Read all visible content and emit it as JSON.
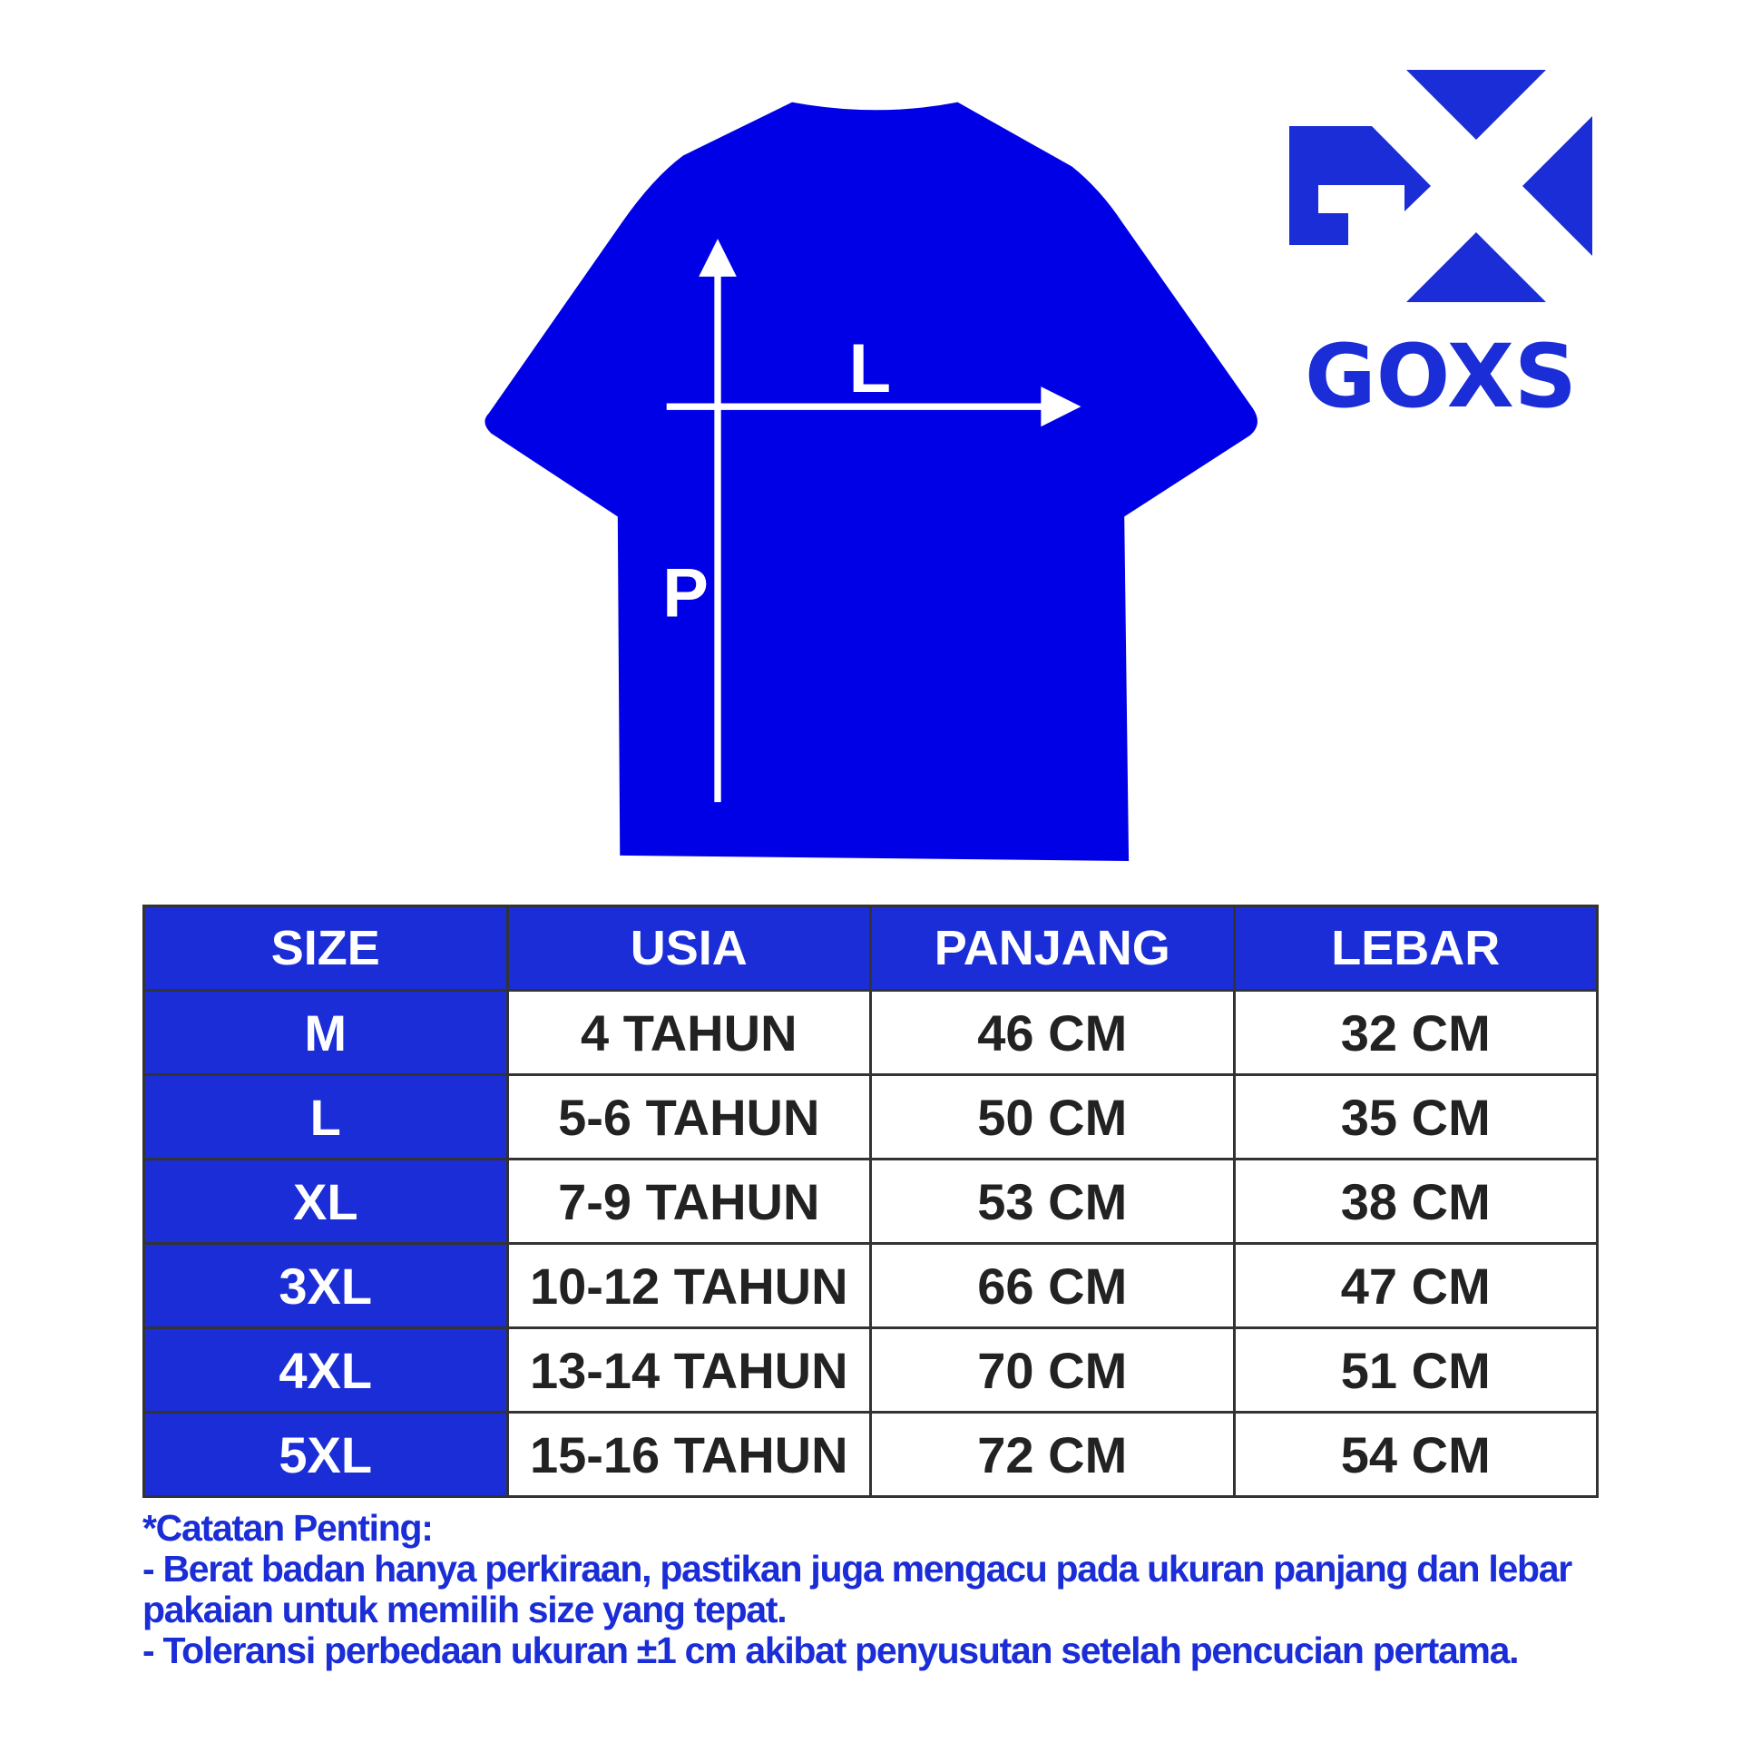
{
  "brand": {
    "logo_text": "GOXS",
    "color": "#1a2dd6"
  },
  "diagram": {
    "shirt_color": "#0000e6",
    "length_label": "P",
    "width_label": "L"
  },
  "table": {
    "headers": [
      "SIZE",
      "USIA",
      "PANJANG",
      "LEBAR"
    ],
    "rows": [
      [
        "M",
        "4 TAHUN",
        "46 CM",
        "32 CM"
      ],
      [
        "L",
        "5-6 TAHUN",
        "50 CM",
        "35 CM"
      ],
      [
        "XL",
        "7-9 TAHUN",
        "53 CM",
        "38 CM"
      ],
      [
        "3XL",
        "10-12 TAHUN",
        "66 CM",
        "47 CM"
      ],
      [
        "4XL",
        "13-14 TAHUN",
        "70 CM",
        "51 CM"
      ],
      [
        "5XL",
        "15-16 TAHUN",
        "72 CM",
        "54 CM"
      ]
    ]
  },
  "notes": {
    "title": "*Catatan Penting:",
    "items": [
      "- Berat badan hanya perkiraan, pastikan juga mengacu pada ukuran panjang dan lebar pakaian untuk memilih size yang tepat.",
      "- Toleransi perbedaan ukuran ±1 cm akibat penyusutan setelah pencucian pertama."
    ]
  }
}
